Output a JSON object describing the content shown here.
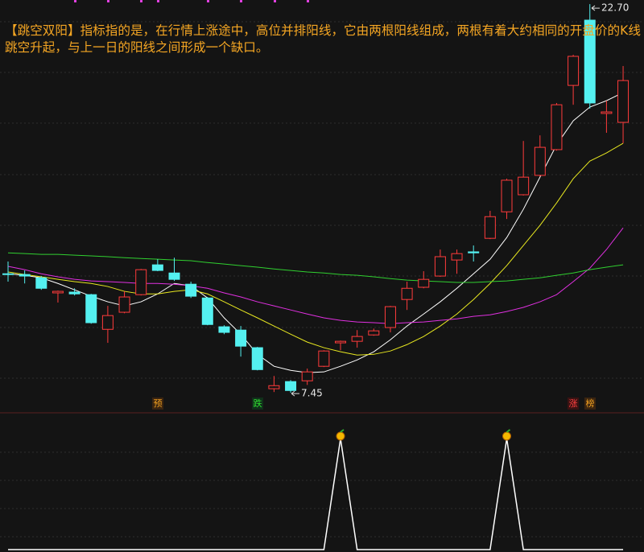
{
  "chart_data": [
    {
      "type": "candlestick",
      "title": "【跳空双阳】指标指的是，在行情上涨途中，高位并排阳线，它由两根阳线组成，两根有着大约相同的开盘价的K线跳空升起，与上一日的阳线之间形成一个缺口。",
      "ylim": [
        6.76,
        22.86
      ],
      "up_color": "#ff3b3b",
      "down_color": "#54f0f0",
      "open": [
        12.12,
        12.09,
        11.96,
        11.37,
        11.4,
        11.3,
        9.94,
        10.61,
        11.3,
        12.47,
        12.15,
        11.71,
        11.17,
        10.04,
        9.91,
        9.22,
        7.61,
        7.89,
        7.92,
        8.49,
        9.41,
        9.47,
        9.72,
        10.01,
        11.11,
        11.59,
        12.03,
        12.66,
        12.98,
        13.51,
        14.55,
        15.22,
        15.98,
        16.99,
        19.51,
        22.07,
        18.41,
        18.06
      ],
      "high": [
        12.6,
        12.25,
        12.03,
        11.46,
        11.55,
        11.33,
        10.86,
        11.43,
        12.31,
        12.69,
        12.75,
        11.81,
        11.21,
        10.1,
        10.07,
        9.25,
        8.11,
        7.95,
        8.4,
        9.12,
        9.5,
        9.91,
        9.97,
        10.86,
        11.81,
        12.22,
        13.07,
        13.07,
        13.23,
        14.59,
        15.85,
        17.33,
        17.55,
        18.82,
        20.71,
        22.7,
        18.91,
        20.27
      ],
      "low": [
        11.81,
        11.74,
        11.49,
        10.99,
        11.27,
        10.16,
        9.41,
        10.57,
        11.27,
        12.22,
        11.84,
        11.17,
        10.1,
        9.75,
        8.87,
        8.33,
        7.48,
        7.45,
        7.76,
        8.46,
        9.12,
        9.22,
        9.69,
        9.82,
        10.7,
        11.55,
        12.0,
        12.12,
        12.6,
        13.48,
        14.27,
        15.19,
        15.94,
        16.95,
        18.75,
        18.6,
        17.65,
        17.24
      ],
      "close": [
        12.09,
        12.03,
        11.55,
        11.43,
        11.33,
        10.2,
        10.48,
        11.21,
        12.28,
        12.25,
        11.9,
        11.24,
        10.13,
        9.82,
        9.28,
        8.36,
        7.73,
        7.54,
        8.27,
        9.09,
        9.47,
        9.66,
        9.88,
        10.83,
        11.55,
        11.9,
        12.79,
        12.91,
        12.94,
        14.36,
        15.79,
        15.91,
        17.08,
        18.75,
        20.65,
        18.82,
        18.47,
        19.7
      ],
      "lines": [
        {
          "color": "#ffffff",
          "values": [
            12.12,
            12.06,
            11.96,
            11.74,
            11.49,
            11.24,
            11.02,
            10.86,
            11.02,
            11.33,
            11.74,
            11.65,
            11.17,
            10.39,
            9.75,
            8.96,
            8.49,
            8.33,
            8.24,
            8.27,
            8.49,
            8.74,
            9.06,
            9.53,
            10.07,
            10.54,
            11.02,
            11.55,
            12.12,
            12.69,
            13.54,
            14.65,
            15.91,
            17.18,
            18.12,
            18.66,
            18.91,
            19.23
          ]
        },
        {
          "color": "#e8e820",
          "values": [
            12.19,
            12.09,
            12.0,
            11.9,
            11.81,
            11.74,
            11.62,
            11.43,
            11.33,
            11.33,
            11.43,
            11.49,
            11.33,
            11.02,
            10.7,
            10.39,
            10.07,
            9.75,
            9.44,
            9.22,
            9.06,
            8.93,
            8.96,
            9.09,
            9.34,
            9.66,
            10.07,
            10.54,
            11.11,
            11.74,
            12.44,
            13.23,
            14.02,
            14.9,
            15.85,
            16.54,
            16.86,
            17.24
          ]
        },
        {
          "color": "#e030e0",
          "values": [
            12.41,
            12.28,
            12.12,
            12.0,
            11.9,
            11.84,
            11.81,
            11.78,
            11.74,
            11.74,
            11.71,
            11.65,
            11.55,
            11.37,
            11.21,
            11.02,
            10.86,
            10.7,
            10.54,
            10.39,
            10.29,
            10.23,
            10.2,
            10.16,
            10.2,
            10.23,
            10.29,
            10.35,
            10.45,
            10.51,
            10.64,
            10.8,
            11.02,
            11.3,
            11.81,
            12.34,
            13.07,
            13.92
          ]
        },
        {
          "color": "#30d030",
          "values": [
            12.94,
            12.91,
            12.88,
            12.88,
            12.85,
            12.82,
            12.79,
            12.75,
            12.72,
            12.69,
            12.66,
            12.63,
            12.56,
            12.5,
            12.44,
            12.38,
            12.31,
            12.25,
            12.19,
            12.15,
            12.09,
            12.06,
            12.0,
            11.93,
            11.87,
            11.84,
            11.81,
            11.78,
            11.78,
            11.81,
            11.84,
            11.9,
            11.96,
            12.06,
            12.15,
            12.28,
            12.38,
            12.47
          ]
        }
      ],
      "annotations": [
        {
          "value": 22.7,
          "label": "22.70"
        },
        {
          "value": 7.45,
          "label": "7.45"
        }
      ],
      "tags": [
        "预",
        "跌",
        "涨",
        "榜"
      ]
    },
    {
      "type": "line",
      "color": "#ffffff",
      "ylim": [
        0,
        1
      ],
      "values": [
        0,
        0,
        0,
        0,
        0,
        0,
        0,
        0,
        0,
        0,
        0,
        0,
        0,
        0,
        0,
        0,
        0,
        0,
        0,
        0,
        1,
        0,
        0,
        0,
        0,
        0,
        0,
        0,
        0,
        0,
        1,
        0,
        0,
        0,
        0,
        0,
        0,
        0
      ]
    }
  ]
}
